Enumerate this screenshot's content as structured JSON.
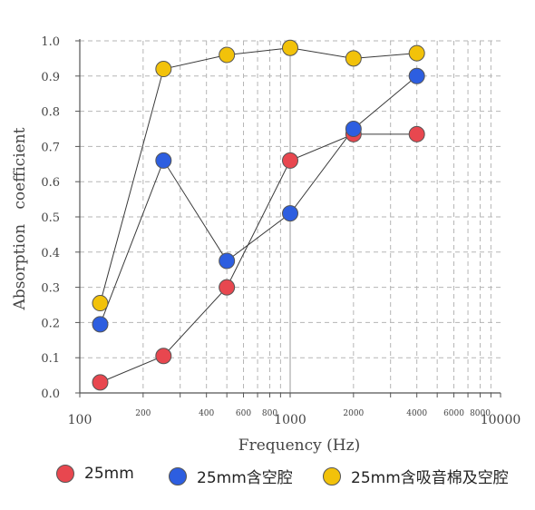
{
  "chart_data": {
    "type": "line",
    "xlabel": "Frequency (Hz)",
    "ylabel": "Absorption   coefficient",
    "x_scale": "log",
    "xlim": [
      100,
      10000
    ],
    "ylim": [
      0,
      1.0
    ],
    "grid": true,
    "legend_position": "bottom",
    "x_ticks_major": [
      {
        "value": 100,
        "label": "100"
      },
      {
        "value": 1000,
        "label": "1000"
      },
      {
        "value": 10000,
        "label": "10000"
      }
    ],
    "x_ticks_minor": [
      {
        "value": 200,
        "label": "200"
      },
      {
        "value": 400,
        "label": "400"
      },
      {
        "value": 600,
        "label": "600"
      },
      {
        "value": 800,
        "label": "800"
      },
      {
        "value": 2000,
        "label": "2000"
      },
      {
        "value": 4000,
        "label": "4000"
      },
      {
        "value": 6000,
        "label": "6000"
      },
      {
        "value": 8000,
        "label": "8000"
      }
    ],
    "x_gridlines": [
      200,
      300,
      400,
      500,
      600,
      700,
      800,
      900,
      2000,
      3000,
      4000,
      5000,
      6000,
      7000,
      8000,
      9000
    ],
    "y_ticks": [
      {
        "value": 0,
        "label": "0.0"
      },
      {
        "value": 0.1,
        "label": "0.1"
      },
      {
        "value": 0.2,
        "label": "0.2"
      },
      {
        "value": 0.3,
        "label": "0.3"
      },
      {
        "value": 0.4,
        "label": "0.4"
      },
      {
        "value": 0.5,
        "label": "0.5"
      },
      {
        "value": 0.6,
        "label": "0.6"
      },
      {
        "value": 0.7,
        "label": "0.7"
      },
      {
        "value": 0.8,
        "label": "0.8"
      },
      {
        "value": 0.9,
        "label": "0.9"
      },
      {
        "value": 1.0,
        "label": "1.0"
      }
    ],
    "x": [
      125,
      250,
      500,
      1000,
      2000,
      4000
    ],
    "series": [
      {
        "name": "25mm",
        "color": "#e8474f",
        "values": [
          0.03,
          0.105,
          0.3,
          0.66,
          0.735,
          0.735
        ]
      },
      {
        "name": "25mm含空腔",
        "color": "#2d5ee0",
        "values": [
          0.195,
          0.66,
          0.375,
          0.51,
          0.75,
          0.9
        ]
      },
      {
        "name": "25mm含吸音棉及空腔",
        "color": "#f2c20a",
        "values": [
          0.255,
          0.92,
          0.96,
          0.98,
          0.95,
          0.965
        ]
      }
    ]
  }
}
